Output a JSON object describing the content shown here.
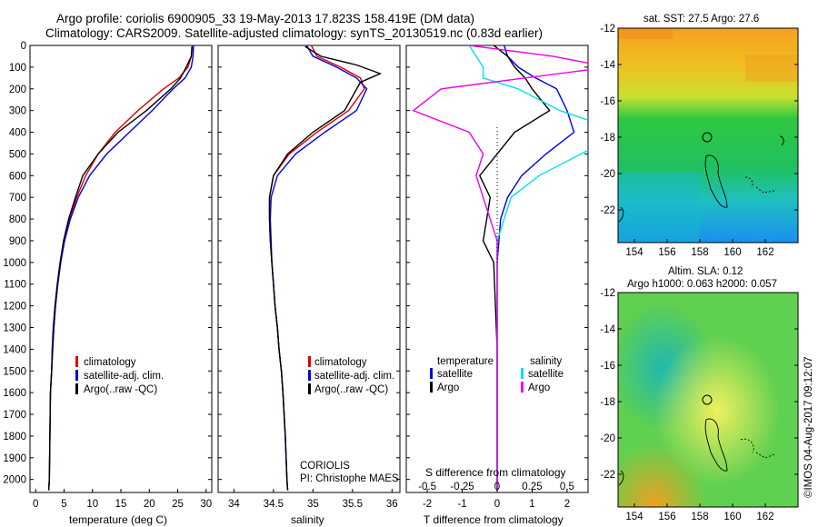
{
  "header": {
    "title_line1": "Argo profile: coriolis 6900905_33 19-May-2013 17.823S 158.419E (DM data)",
    "title_line2": "Climatology: CARS2009. Satellite-adjusted climatology: synTS_20130519.nc (0.83d earlier)"
  },
  "colors": {
    "climatology": "#e00000",
    "satellite": "#0000e6",
    "argo": "#000000",
    "salinity_satellite": "#00e0e8",
    "salinity_argo": "#f000f0"
  },
  "chart_data": [
    {
      "type": "line",
      "id": "temperature",
      "xlabel": "temperature (deg C)",
      "ylabel": "",
      "xlim": [
        -1,
        31
      ],
      "ylim": [
        2060,
        0
      ],
      "xticks": [
        0,
        5,
        10,
        15,
        20,
        25,
        30
      ],
      "yticks": [
        0,
        100,
        200,
        300,
        400,
        500,
        600,
        700,
        800,
        900,
        1000,
        1100,
        1200,
        1300,
        1400,
        1500,
        1600,
        1700,
        1800,
        1900,
        2000
      ],
      "legend": [
        "climatology",
        "satellite-adj. clim.",
        "Argo(..raw -QC)"
      ],
      "series": [
        {
          "name": "climatology",
          "color": "#e00000",
          "x": [
            27.6,
            27.4,
            26.8,
            25.2,
            22.5,
            18,
            14,
            11,
            8.8,
            7.2,
            6.0,
            5.0,
            4.4,
            3.9,
            3.5,
            3.2,
            3.0,
            2.8,
            2.6,
            2.5,
            2.4,
            2.3
          ],
          "y": [
            0,
            50,
            100,
            150,
            200,
            300,
            400,
            500,
            600,
            700,
            800,
            900,
            1000,
            1100,
            1200,
            1300,
            1400,
            1500,
            1600,
            1800,
            2000,
            2050
          ]
        },
        {
          "name": "satellite-adj. clim.",
          "color": "#0000e6",
          "x": [
            27.8,
            27.7,
            27.4,
            26.3,
            24.2,
            20.5,
            16.5,
            12.5,
            9.5,
            7.5,
            6.1,
            5.1,
            4.4,
            3.9,
            3.5,
            3.2,
            3.0,
            2.8,
            2.6,
            2.5,
            2.4,
            2.3
          ],
          "y": [
            0,
            50,
            100,
            150,
            200,
            300,
            400,
            500,
            600,
            700,
            800,
            900,
            1000,
            1100,
            1200,
            1300,
            1400,
            1500,
            1600,
            1800,
            2000,
            2050
          ]
        },
        {
          "name": "Argo(..raw -QC)",
          "color": "#000000",
          "x": [
            27.5,
            27.4,
            26.5,
            25.5,
            23.8,
            19.5,
            14.5,
            11,
            8.3,
            7.0,
            5.8,
            4.9,
            4.3,
            3.8,
            3.4,
            3.1,
            2.9,
            2.8,
            2.6,
            2.5,
            2.4,
            2.3
          ],
          "y": [
            5,
            50,
            100,
            150,
            200,
            300,
            400,
            500,
            600,
            700,
            800,
            900,
            1000,
            1100,
            1200,
            1300,
            1400,
            1500,
            1600,
            1800,
            2000,
            2050
          ]
        }
      ]
    },
    {
      "type": "line",
      "id": "salinity",
      "xlabel": "salinity",
      "xlim": [
        33.8,
        36.1
      ],
      "ylim": [
        2060,
        0
      ],
      "xticks": [
        34,
        34.5,
        35,
        35.5,
        36
      ],
      "legend": [
        "climatology",
        "satellite-adj. clim.",
        "Argo(..raw -QC)"
      ],
      "annotations": [
        "CORIOLIS",
        "PI: Christophe MAES"
      ],
      "series": [
        {
          "name": "climatology",
          "color": "#e00000",
          "x": [
            34.98,
            35.05,
            35.35,
            35.6,
            35.65,
            35.45,
            35.05,
            34.7,
            34.5,
            34.45,
            34.45,
            34.46,
            34.48,
            34.5,
            34.52,
            34.55,
            34.57,
            34.6,
            34.62,
            34.65,
            34.67,
            34.68
          ],
          "y": [
            0,
            50,
            100,
            150,
            200,
            300,
            400,
            500,
            600,
            700,
            800,
            900,
            1000,
            1100,
            1200,
            1300,
            1400,
            1500,
            1600,
            1800,
            2000,
            2050
          ]
        },
        {
          "name": "satellite-adj. clim.",
          "color": "#0000e6",
          "x": [
            34.92,
            35.0,
            35.3,
            35.55,
            35.68,
            35.55,
            35.15,
            34.78,
            34.55,
            34.47,
            34.46,
            34.47,
            34.48,
            34.5,
            34.52,
            34.55,
            34.57,
            34.6,
            34.62,
            34.65,
            34.67,
            34.68
          ],
          "y": [
            0,
            50,
            100,
            150,
            200,
            300,
            400,
            500,
            600,
            700,
            800,
            900,
            1000,
            1100,
            1200,
            1300,
            1400,
            1500,
            1600,
            1800,
            2000,
            2050
          ]
        },
        {
          "name": "Argo(..raw -QC)",
          "color": "#000000",
          "x": [
            34.9,
            35.1,
            35.55,
            35.85,
            35.6,
            35.4,
            35.0,
            34.68,
            34.5,
            34.45,
            34.45,
            34.46,
            34.48,
            34.5,
            34.52,
            34.55,
            34.57,
            34.6,
            34.62,
            34.65,
            34.67,
            34.68
          ],
          "y": [
            5,
            50,
            90,
            130,
            170,
            300,
            400,
            500,
            600,
            700,
            800,
            900,
            1000,
            1100,
            1200,
            1300,
            1400,
            1500,
            1600,
            1800,
            2000,
            2050
          ]
        }
      ]
    },
    {
      "type": "line",
      "id": "differences",
      "xlabel": "T difference from climatology",
      "xlabel_top": "S difference from climatology",
      "xlim": [
        -2.6,
        2.6
      ],
      "ylim": [
        2060,
        0
      ],
      "xticks": [
        -2,
        -1,
        0,
        1,
        2
      ],
      "xticks_top": [
        "-0.5",
        "-0.25",
        "0",
        "0.25",
        "0.5"
      ],
      "legend_headers": [
        "temperature",
        "salinity"
      ],
      "legend": [
        "satellite",
        "Argo",
        "satellite",
        "Argo"
      ],
      "series": [
        {
          "name": "temperature satellite",
          "color": "#0000e6",
          "x": [
            0.2,
            0.3,
            0.6,
            1.1,
            1.7,
            2.0,
            2.2,
            1.4,
            0.7,
            0.3,
            0.1,
            0.05,
            0,
            0,
            0
          ],
          "y": [
            0,
            50,
            100,
            150,
            200,
            300,
            400,
            500,
            600,
            700,
            800,
            900,
            1000,
            1400,
            2050
          ]
        },
        {
          "name": "temperature Argo",
          "color": "#000000",
          "x": [
            -0.1,
            0.3,
            0.5,
            0.8,
            1.0,
            1.5,
            0.5,
            0.0,
            -0.5,
            -0.2,
            -0.3,
            -0.4,
            -0.1,
            0,
            0
          ],
          "y": [
            0,
            50,
            100,
            150,
            200,
            300,
            400,
            500,
            600,
            700,
            800,
            900,
            1000,
            1400,
            2050
          ]
        },
        {
          "name": "salinity satellite",
          "color": "#00e0e8",
          "x": [
            -0.2,
            -0.15,
            -0.1,
            -0.1,
            0.15,
            0.45,
            0.9,
            0.6,
            0.3,
            0.1,
            0.05,
            0.0,
            0.0,
            0,
            0
          ],
          "y": [
            0,
            50,
            100,
            150,
            200,
            300,
            400,
            500,
            600,
            700,
            800,
            900,
            1000,
            1400,
            2050
          ]
        },
        {
          "name": "salinity Argo",
          "color": "#f000f0",
          "x": [
            -0.2,
            0.4,
            0.8,
            0.2,
            -0.4,
            -0.6,
            -0.2,
            -0.1,
            -0.15,
            -0.1,
            -0.05,
            0.0,
            0.0,
            0,
            0
          ],
          "y": [
            0,
            50,
            100,
            150,
            200,
            300,
            400,
            500,
            600,
            700,
            800,
            900,
            1000,
            1400,
            2050
          ]
        }
      ]
    },
    {
      "type": "heatmap",
      "id": "sst_map",
      "title": "sat. SST: 27.5 Argo: 27.6",
      "xticks": [
        154,
        156,
        158,
        160,
        162
      ],
      "yticks": [
        -12,
        -14,
        -16,
        -18,
        -20,
        -22
      ],
      "xlim": [
        153,
        164
      ],
      "ylim": [
        -23.8,
        -12
      ]
    },
    {
      "type": "heatmap",
      "id": "sla_map",
      "title": "Altim. SLA: 0.12",
      "subtitle": "Argo h1000: 0.063 h2000: 0.057",
      "xticks": [
        154,
        156,
        158,
        160,
        162
      ],
      "yticks": [
        -12,
        -14,
        -16,
        -18,
        -20,
        -22
      ],
      "xlim": [
        153,
        164
      ],
      "ylim": [
        -23.8,
        -12
      ]
    }
  ],
  "footer": {
    "credit": "©IMOS 04-Aug-2017 09:12:07"
  }
}
